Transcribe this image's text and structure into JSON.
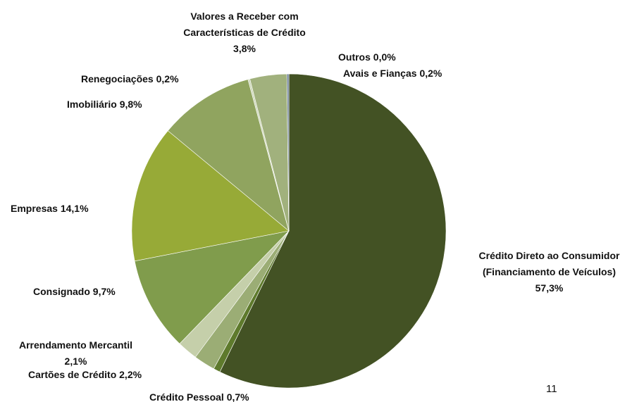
{
  "chart_data": {
    "type": "pie",
    "categories": [
      "Crédito Direto ao Consumidor (Financiamento de Veículos)",
      "Crédito Pessoal",
      "Cartões de Crédito",
      "Arrendamento Mercantil",
      "Consignado",
      "Empresas",
      "Imobiliário",
      "Renegociações",
      "Valores a Receber com Características de Crédito",
      "Outros",
      "Avais e Fianças"
    ],
    "values": [
      57.3,
      0.7,
      2.2,
      2.1,
      9.7,
      14.1,
      9.8,
      0.2,
      3.8,
      0.0,
      0.2
    ],
    "value_labels": [
      "57,3%",
      "0,7%",
      "2,2%",
      "2,1%",
      "9,7%",
      "14,1%",
      "9,8%",
      "0,2%",
      "3,8%",
      "0,0%",
      "0,2%"
    ],
    "colors": [
      "#435224",
      "#5e7a2c",
      "#9bad75",
      "#c5cfaa",
      "#809c4c",
      "#97aa37",
      "#90a45f",
      "#cfd8bb",
      "#a1b17d",
      "#8a9a70",
      "#6c7f95"
    ]
  },
  "page_number": "11"
}
